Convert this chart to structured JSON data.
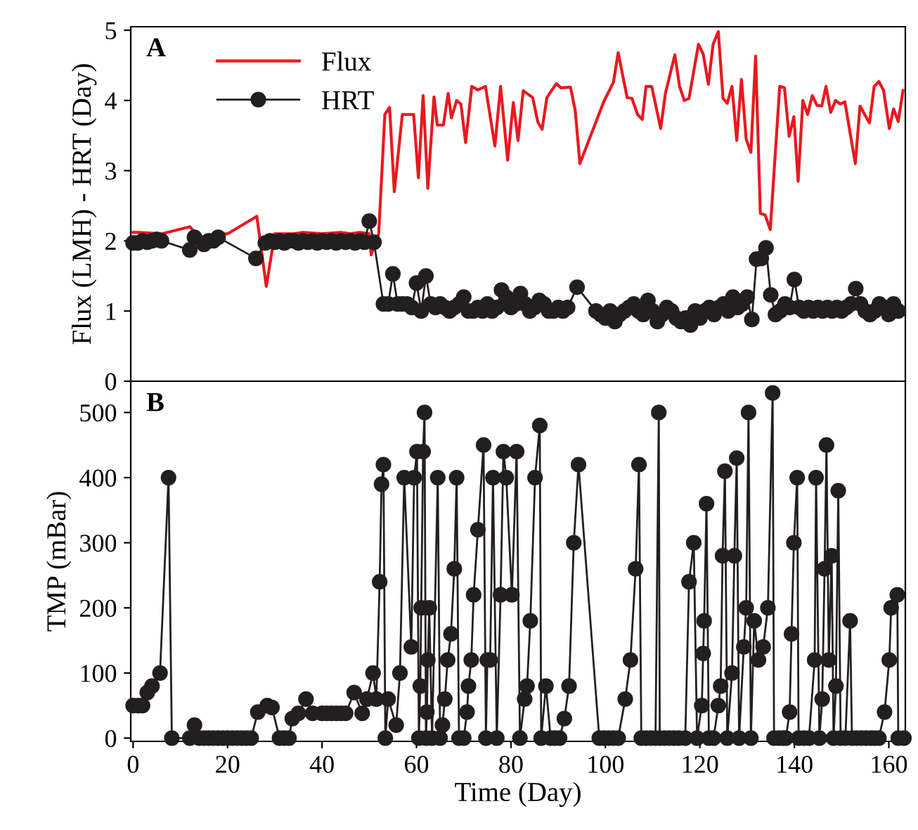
{
  "chart_data": [
    {
      "type": "line",
      "ylabel": "Flux (LMH) - HRT (Day)",
      "annotations": [
        "A"
      ],
      "xlim": [
        -0.5,
        163.5
      ],
      "ylim": [
        0,
        5.05
      ],
      "yticks": [
        0,
        1,
        2,
        3,
        4,
        5
      ],
      "tick_labels": "y",
      "legend": "top left",
      "grid": false,
      "series": [
        {
          "name": "Flux",
          "color": "#e8191f",
          "marker": "none",
          "x": [
            0,
            1.1,
            6,
            12,
            14,
            18,
            20,
            26.2,
            28.2,
            30,
            34,
            36,
            40,
            44,
            46,
            48,
            50,
            50.4,
            52,
            53.3,
            54.3,
            55.3,
            57,
            59.4,
            60.4,
            61.4,
            62.4,
            63.7,
            64.4,
            65.7,
            66.7,
            67.4,
            68.5,
            69.4,
            70.4,
            71.7,
            73,
            74.6,
            76.6,
            77.8,
            79.3,
            80.5,
            81.5,
            82.6,
            84.6,
            85.7,
            86.6,
            87.6,
            89.6,
            90.6,
            92.6,
            93.6,
            94.6,
            99.7,
            101.7,
            102.7,
            104.6,
            105.6,
            106.8,
            107.8,
            108.6,
            109.8,
            111.7,
            112.7,
            114.7,
            115.7,
            116.7,
            117.7,
            119.7,
            120.7,
            121.8,
            122.8,
            123.9,
            124.9,
            125.8,
            126.8,
            127.8,
            128.8,
            129.8,
            130.8,
            131.8,
            132.8,
            133.8,
            134.9,
            136.9,
            137.9,
            138.9,
            139.9,
            140.8,
            141.8,
            142.8,
            143.8,
            144.8,
            145.8,
            146.7,
            147.7,
            148.7,
            149.7,
            150.7,
            152.9,
            153.9,
            155.9,
            156.9,
            157.9,
            158.9,
            160.1,
            161,
            162,
            163
          ],
          "values": [
            2.12,
            2.12,
            2.1,
            2.2,
            2.05,
            2.1,
            2.1,
            2.35,
            1.35,
            2.1,
            2.1,
            2.12,
            2.1,
            2.12,
            2.1,
            2.12,
            2.1,
            1.8,
            2.1,
            3.8,
            3.9,
            2.7,
            3.8,
            3.8,
            2.9,
            4.07,
            2.75,
            4.05,
            3.65,
            3.65,
            4.1,
            3.75,
            4.0,
            3.95,
            3.4,
            4.2,
            4.15,
            4.2,
            3.35,
            4.2,
            3.15,
            3.97,
            3.43,
            4.14,
            4.04,
            3.69,
            3.59,
            4.04,
            4.24,
            4.18,
            4.19,
            3.86,
            3.1,
            3.99,
            4.26,
            4.68,
            4.04,
            4.03,
            3.8,
            3.73,
            4.2,
            4.2,
            3.6,
            4.1,
            4.65,
            4.2,
            4.0,
            4.03,
            4.8,
            4.66,
            4.23,
            4.8,
            4.98,
            4.03,
            3.96,
            4.2,
            3.43,
            4.3,
            3.45,
            3.26,
            4.63,
            2.39,
            2.37,
            2.16,
            4.2,
            4.18,
            3.49,
            3.77,
            2.85,
            4.0,
            3.8,
            4.07,
            3.93,
            3.92,
            4.2,
            3.83,
            4.0,
            3.95,
            3.98,
            3.1,
            3.92,
            3.68,
            4.2,
            4.27,
            4.14,
            3.6,
            3.88,
            3.7,
            4.14
          ]
        },
        {
          "name": "HRT",
          "color": "#231f20",
          "marker": "circle",
          "x": [
            0,
            1,
            2,
            3,
            4,
            5,
            6,
            12,
            13,
            15,
            16,
            17,
            18,
            26,
            28,
            29,
            30,
            31,
            32,
            33,
            34,
            35,
            36,
            37,
            38,
            39,
            40,
            41,
            42,
            43,
            44,
            45,
            46,
            47,
            48,
            49,
            50,
            51,
            53,
            54,
            55,
            56,
            57,
            58,
            59,
            60,
            61,
            62,
            63,
            64,
            65,
            66,
            67,
            68,
            69,
            70,
            71,
            72,
            73,
            74,
            75,
            76,
            77,
            78,
            79,
            80,
            81,
            82,
            83,
            84,
            85,
            86,
            87,
            88,
            89,
            90,
            91,
            92,
            94,
            98,
            99,
            100,
            101,
            102,
            103,
            104,
            105,
            106,
            107,
            108,
            109,
            110,
            111,
            112,
            113,
            114,
            115,
            116,
            117,
            118,
            119,
            120,
            121,
            122,
            123,
            124,
            125,
            126,
            127,
            128,
            129,
            130,
            131,
            132,
            133,
            134,
            135,
            136,
            137,
            138,
            139,
            140,
            141,
            142,
            143,
            144,
            145,
            146,
            147,
            148,
            149,
            150,
            151,
            152,
            153,
            154,
            155,
            156,
            157,
            158,
            159,
            160,
            161,
            162
          ],
          "values": [
            1.97,
            1.97,
            2.0,
            1.98,
            2.0,
            2.02,
            2.0,
            1.87,
            2.05,
            1.95,
            2.0,
            2.0,
            2.05,
            1.75,
            1.97,
            2.0,
            1.98,
            2.0,
            1.97,
            2.0,
            2.0,
            1.97,
            2.0,
            1.98,
            2.0,
            1.97,
            2.0,
            1.98,
            2.0,
            1.97,
            2.0,
            1.98,
            2.0,
            1.97,
            2.0,
            1.98,
            2.28,
            1.98,
            1.1,
            1.1,
            1.53,
            1.1,
            1.1,
            1.1,
            1.05,
            1.4,
            1.0,
            1.5,
            1.1,
            1.05,
            1.1,
            1.05,
            1.0,
            1.05,
            1.1,
            1.2,
            1.0,
            1.0,
            1.05,
            1.0,
            1.1,
            1.0,
            1.05,
            1.3,
            1.2,
            1.05,
            1.1,
            1.25,
            1.1,
            1.0,
            1.05,
            1.15,
            1.1,
            1.0,
            1.0,
            1.05,
            1.0,
            1.05,
            1.34,
            1.0,
            0.95,
            0.9,
            1.0,
            0.85,
            0.95,
            1.0,
            1.05,
            1.1,
            1.0,
            0.95,
            1.15,
            1.0,
            0.85,
            0.95,
            1.05,
            1.0,
            0.9,
            0.85,
            0.9,
            0.8,
            1.0,
            0.9,
            1.0,
            1.05,
            0.95,
            1.05,
            1.1,
            1.0,
            1.2,
            1.05,
            1.1,
            1.2,
            0.88,
            1.74,
            1.75,
            1.9,
            1.23,
            0.95,
            1.0,
            1.1,
            1.05,
            1.45,
            1.05,
            1.0,
            1.05,
            1.0,
            1.05,
            1.0,
            1.05,
            1.0,
            1.05,
            1.0,
            1.05,
            1.1,
            1.32,
            1.1,
            1.0,
            0.95,
            1.0,
            1.1,
            1.05,
            0.95,
            1.1,
            1.0
          ]
        }
      ]
    },
    {
      "type": "line",
      "xlabel": "Time (Day)",
      "ylabel": "TMP (mBar)",
      "annotations": [
        "B"
      ],
      "xlim": [
        -0.5,
        163.5
      ],
      "xticks": [
        0,
        20,
        40,
        60,
        80,
        100,
        120,
        140,
        160
      ],
      "ylim": [
        -5,
        548
      ],
      "yticks": [
        0,
        100,
        200,
        300,
        400,
        500
      ],
      "grid": false,
      "series": [
        {
          "color": "#231f20",
          "marker": "circle",
          "x": [
            0,
            1.1,
            2,
            3,
            4,
            5.7,
            7.5,
            8.2,
            12,
            13,
            14,
            15,
            16,
            17,
            18,
            19,
            20,
            21,
            22,
            23,
            24,
            25,
            26.4,
            28.4,
            29.4,
            31,
            32,
            33,
            33.7,
            35,
            36.6,
            38,
            40,
            41,
            42,
            43,
            44,
            45,
            46.8,
            48.5,
            49.5,
            50.8,
            51.5,
            52.2,
            52.6,
            53,
            53.4,
            54,
            55.7,
            56.5,
            57.4,
            58.9,
            59.5,
            60.1,
            60.5,
            60.8,
            61,
            61.4,
            61.7,
            62,
            62.2,
            62.4,
            62.7,
            63.3,
            64.5,
            65,
            65.5,
            66,
            66.6,
            67.3,
            68,
            68.5,
            69,
            70,
            70.7,
            71,
            71.6,
            72.1,
            73,
            74.2,
            74.7,
            75,
            75.6,
            76.2,
            77,
            77.8,
            78.4,
            79,
            80.2,
            81.2,
            81.9,
            82.9,
            83.4,
            84.1,
            85.1,
            86.1,
            86.4,
            87.4,
            88.4,
            89.3,
            90.3,
            91.3,
            92.3,
            93.3,
            94.3,
            98.7,
            99.7,
            100.7,
            101.7,
            102.7,
            104.2,
            105.3,
            106.4,
            107.1,
            107.6,
            108.6,
            109.6,
            110.6,
            111.3,
            111.5,
            112.5,
            113.5,
            114.5,
            115.5,
            116.9,
            117.7,
            118.7,
            119.4,
            120.4,
            120.7,
            120.9,
            121.4,
            121.9,
            122.9,
            123.9,
            124.4,
            124.8,
            125.3,
            125.8,
            126.8,
            127.3,
            127.8,
            128.3,
            129.3,
            129.8,
            130.3,
            130.8,
            131.5,
            132.4,
            133.4,
            134.4,
            135.4,
            135.7,
            136.7,
            137.5,
            138.2,
            139,
            139.4,
            139.9,
            140.6,
            140.9,
            142,
            143.1,
            144.3,
            144.6,
            145.3,
            145.9,
            146.4,
            146.8,
            147.3,
            147.9,
            148.3,
            148.8,
            149.3,
            149.8,
            150.8,
            151.8,
            152.2,
            153.2,
            154.2,
            155.2,
            156.2,
            157,
            157.9,
            159.1,
            160.1,
            160.5,
            161.8,
            162,
            163.2
          ],
          "values": [
            50,
            50,
            50,
            70,
            80,
            100,
            400,
            0,
            0,
            20,
            0,
            0,
            0,
            0,
            0,
            0,
            0,
            0,
            0,
            0,
            0,
            0,
            40,
            50,
            47,
            0,
            0,
            0,
            30,
            38,
            60,
            38,
            38,
            38,
            38,
            38,
            38,
            38,
            70,
            38,
            60,
            100,
            60,
            240,
            390,
            420,
            0,
            60,
            20,
            100,
            400,
            140,
            400,
            440,
            0,
            80,
            200,
            440,
            500,
            0,
            40,
            120,
            200,
            0,
            400,
            0,
            20,
            60,
            120,
            160,
            260,
            400,
            0,
            0,
            40,
            80,
            120,
            220,
            320,
            450,
            0,
            120,
            120,
            400,
            0,
            220,
            440,
            400,
            220,
            440,
            0,
            60,
            80,
            180,
            400,
            480,
            0,
            80,
            0,
            0,
            0,
            30,
            80,
            300,
            420,
            0,
            0,
            0,
            0,
            0,
            60,
            120,
            260,
            420,
            0,
            0,
            0,
            0,
            500,
            0,
            0,
            0,
            0,
            0,
            0,
            240,
            300,
            0,
            50,
            130,
            180,
            360,
            0,
            0,
            50,
            80,
            280,
            410,
            0,
            100,
            280,
            430,
            0,
            140,
            200,
            500,
            0,
            180,
            120,
            140,
            200,
            530,
            0,
            0,
            0,
            0,
            40,
            160,
            300,
            400,
            0,
            0,
            0,
            120,
            400,
            0,
            60,
            260,
            450,
            120,
            280,
            0,
            80,
            380,
            0,
            0,
            180,
            0,
            0,
            0,
            0,
            0,
            0,
            0,
            40,
            120,
            200,
            220,
            0,
            0
          ]
        }
      ]
    }
  ]
}
